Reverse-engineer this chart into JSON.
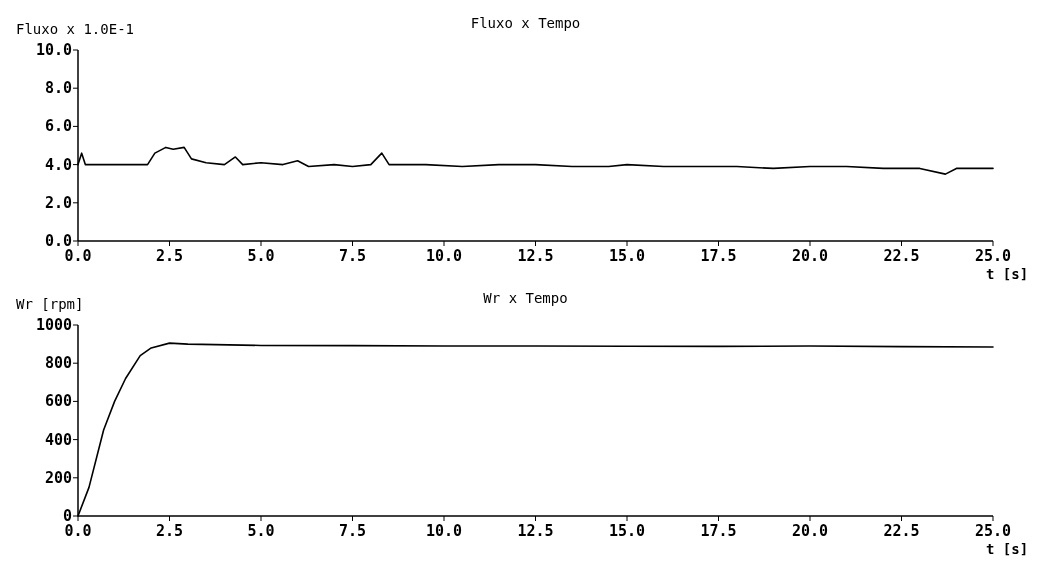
{
  "chart_data": [
    {
      "type": "line",
      "title": "Fluxo x Tempo",
      "ylabel": "Fluxo x 1.0E-1",
      "xlabel": "t [s]",
      "xlim": [
        0,
        25
      ],
      "ylim": [
        0,
        10
      ],
      "xticks": [
        {
          "value": 0,
          "label": "0.0"
        },
        {
          "value": 2.5,
          "label": "2.5"
        },
        {
          "value": 5,
          "label": "5.0"
        },
        {
          "value": 7.5,
          "label": "7.5"
        },
        {
          "value": 10,
          "label": "10.0"
        },
        {
          "value": 12.5,
          "label": "12.5"
        },
        {
          "value": 15,
          "label": "15.0"
        },
        {
          "value": 17.5,
          "label": "17.5"
        },
        {
          "value": 20,
          "label": "20.0"
        },
        {
          "value": 22.5,
          "label": "22.5"
        },
        {
          "value": 25,
          "label": "25.0"
        }
      ],
      "yticks": [
        {
          "value": 0,
          "label": "0.0"
        },
        {
          "value": 2,
          "label": "2.0"
        },
        {
          "value": 4,
          "label": "4.0"
        },
        {
          "value": 6,
          "label": "6.0"
        },
        {
          "value": 8,
          "label": "8.0"
        },
        {
          "value": 10,
          "label": "10.0"
        }
      ],
      "grid": false,
      "series": [
        {
          "color": "#000000",
          "x": [
            0,
            0.1,
            0.2,
            1.9,
            2.1,
            2.4,
            2.6,
            2.9,
            3.1,
            3.5,
            4.0,
            4.3,
            4.5,
            5.0,
            5.6,
            6.0,
            6.3,
            7.0,
            7.5,
            8.0,
            8.3,
            8.5,
            9.5,
            10.5,
            11.5,
            12.5,
            13.5,
            14.5,
            15.0,
            16,
            17,
            18,
            19,
            20,
            21,
            22,
            23,
            23.7,
            24,
            25
          ],
          "values": [
            4.0,
            4.6,
            4.0,
            4.0,
            4.6,
            4.9,
            4.8,
            4.9,
            4.3,
            4.1,
            4.0,
            4.4,
            4.0,
            4.1,
            4.0,
            4.2,
            3.9,
            4.0,
            3.9,
            4.0,
            4.6,
            4.0,
            4.0,
            3.9,
            4.0,
            4.0,
            3.9,
            3.9,
            4.0,
            3.9,
            3.9,
            3.9,
            3.8,
            3.9,
            3.9,
            3.8,
            3.8,
            3.5,
            3.8,
            3.8
          ]
        }
      ]
    },
    {
      "type": "line",
      "title": "Wr x Tempo",
      "ylabel": "Wr [rpm]",
      "xlabel": "t [s]",
      "xlim": [
        0,
        25
      ],
      "ylim": [
        0,
        1000
      ],
      "xticks": [
        {
          "value": 0,
          "label": "0.0"
        },
        {
          "value": 2.5,
          "label": "2.5"
        },
        {
          "value": 5,
          "label": "5.0"
        },
        {
          "value": 7.5,
          "label": "7.5"
        },
        {
          "value": 10,
          "label": "10.0"
        },
        {
          "value": 12.5,
          "label": "12.5"
        },
        {
          "value": 15,
          "label": "15.0"
        },
        {
          "value": 17.5,
          "label": "17.5"
        },
        {
          "value": 20,
          "label": "20.0"
        },
        {
          "value": 22.5,
          "label": "22.5"
        },
        {
          "value": 25,
          "label": "25.0"
        }
      ],
      "yticks": [
        0,
        200,
        400,
        600,
        800,
        1000
      ],
      "grid": false,
      "series": [
        {
          "color": "#000000",
          "x": [
            0,
            0.3,
            0.7,
            1.0,
            1.3,
            1.7,
            2.0,
            2.5,
            3.0,
            5,
            7.5,
            10,
            12.5,
            15,
            17.5,
            20,
            22.5,
            25
          ],
          "values": [
            0,
            150,
            450,
            600,
            720,
            840,
            880,
            905,
            900,
            893,
            892,
            890,
            890,
            889,
            888,
            890,
            887,
            885
          ]
        }
      ]
    }
  ]
}
